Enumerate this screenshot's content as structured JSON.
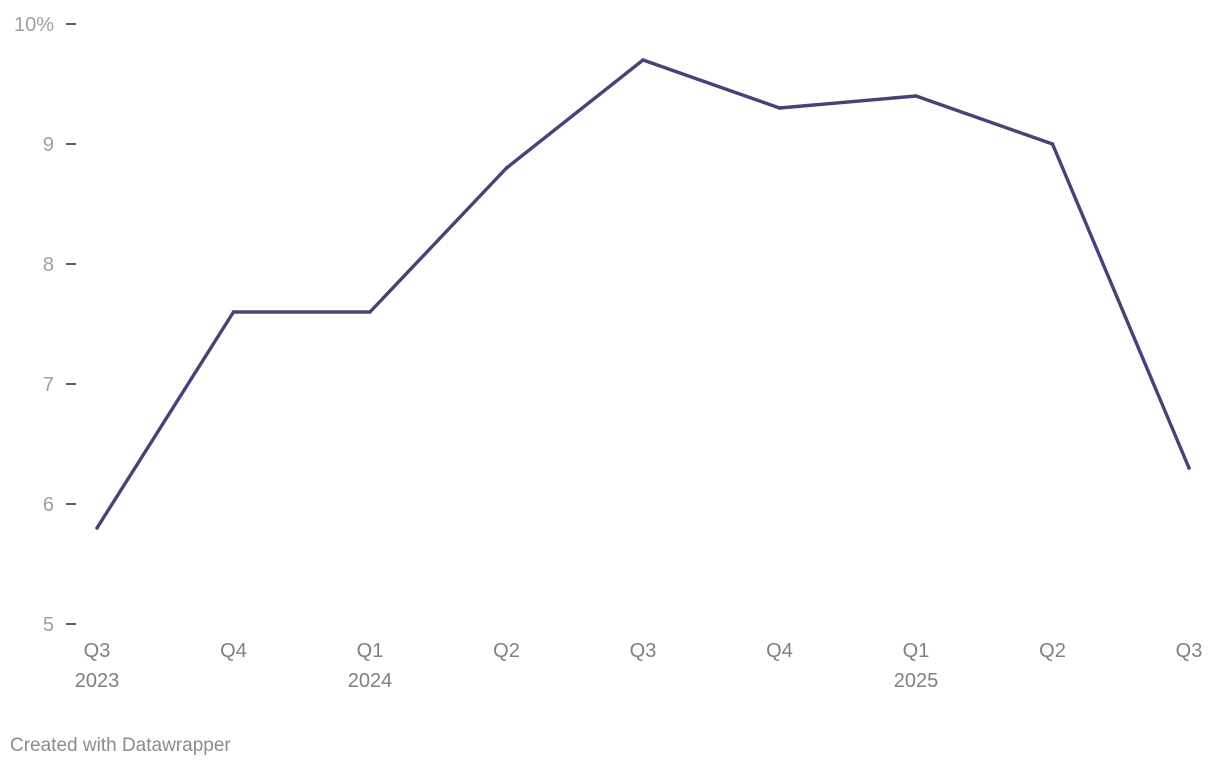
{
  "chart_data": {
    "type": "line",
    "categories": [
      "Q3",
      "Q4",
      "Q1",
      "Q2",
      "Q3",
      "Q4",
      "Q1",
      "Q2",
      "Q3"
    ],
    "year_labels": [
      "2023",
      "",
      "2024",
      "",
      "",
      "",
      "2025",
      "",
      ""
    ],
    "series": [
      {
        "values": [
          5.8,
          7.6,
          7.6,
          8.8,
          9.7,
          9.3,
          9.4,
          9.0,
          6.3
        ],
        "color": "#4d3f78"
      }
    ],
    "yticks": [
      5,
      6,
      7,
      8,
      9,
      10
    ],
    "ytick_labels": [
      "5",
      "6",
      "7",
      "8",
      "9",
      "10%"
    ],
    "ylim": [
      5,
      10
    ],
    "grid": false,
    "legend": "none"
  },
  "footer": {
    "credit": "Created with Datawrapper"
  }
}
